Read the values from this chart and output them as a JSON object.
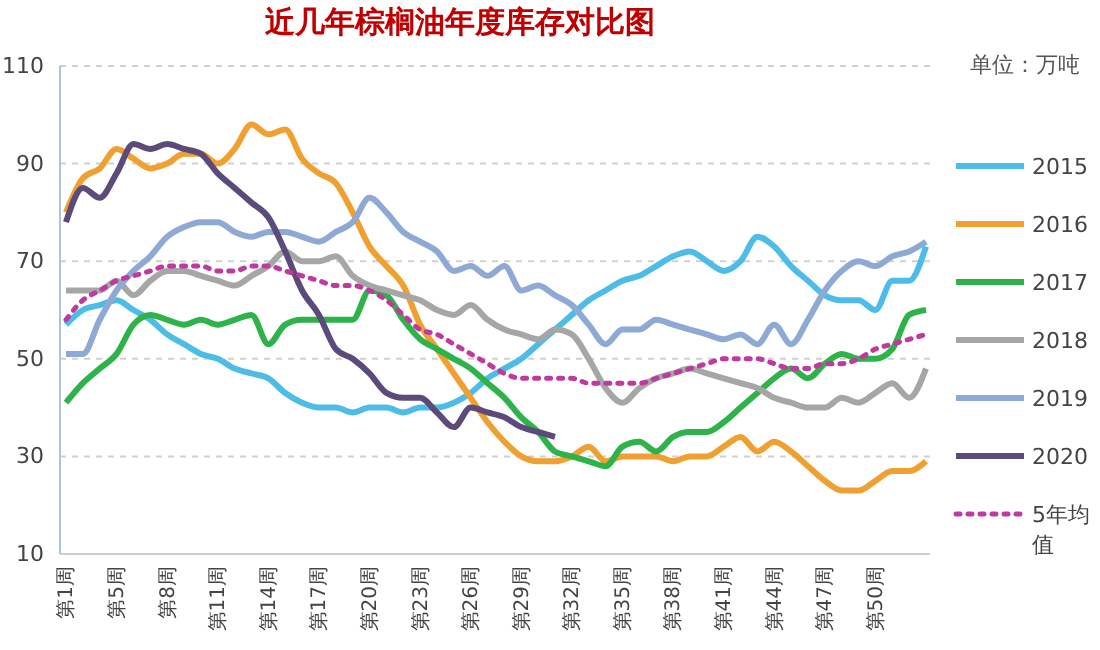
{
  "chart_data": {
    "type": "line",
    "title": "近几年棕榈油年度库存对比图",
    "annotations": [
      "单位：万吨"
    ],
    "categories": [
      "第1周",
      null,
      null,
      "第5周",
      null,
      null,
      "第8周",
      null,
      null,
      "第11周",
      null,
      null,
      "第14周",
      null,
      null,
      "第17周",
      null,
      null,
      "第20周",
      null,
      null,
      "第23周",
      null,
      null,
      "第26周",
      null,
      null,
      "第29周",
      null,
      null,
      "第32周",
      null,
      null,
      "第35周",
      null,
      null,
      "第38周",
      null,
      null,
      "第41周",
      null,
      null,
      "第44周",
      null,
      null,
      "第47周",
      null,
      null,
      "第50周",
      null,
      null,
      null
    ],
    "ylim": [
      10,
      110
    ],
    "yticks": [
      10,
      30,
      50,
      70,
      90,
      110
    ],
    "grid": "y",
    "legend": "right",
    "marker": "none",
    "series": [
      {
        "name": "2015",
        "color": "#4dbde8",
        "values": [
          57,
          60,
          61,
          62,
          60,
          58,
          55,
          53,
          51,
          50,
          48,
          47,
          46,
          43,
          41,
          40,
          40,
          39,
          40,
          40,
          39,
          40,
          40,
          41,
          43,
          46,
          48,
          50,
          53,
          56,
          59,
          62,
          64,
          66,
          67,
          69,
          71,
          72,
          70,
          68,
          70,
          75,
          73,
          69,
          66,
          63,
          62,
          62,
          60,
          66,
          66,
          73
        ]
      },
      {
        "name": "2016",
        "color": "#f0a030",
        "values": [
          80,
          87,
          89,
          93,
          91,
          89,
          90,
          92,
          92,
          90,
          93,
          98,
          96,
          97,
          91,
          88,
          86,
          80,
          73,
          69,
          65,
          57,
          52,
          47,
          42,
          37,
          33,
          30,
          29,
          29,
          30,
          32,
          29,
          30,
          30,
          30,
          29,
          30,
          30,
          32,
          34,
          31,
          33,
          31,
          28,
          25,
          23,
          23,
          25,
          27,
          27,
          29
        ]
      },
      {
        "name": "2017",
        "color": "#2db34a",
        "values": [
          41,
          45,
          48,
          51,
          57,
          59,
          58,
          57,
          58,
          57,
          58,
          59,
          53,
          57,
          58,
          58,
          58,
          58,
          64,
          63,
          58,
          54,
          52,
          50,
          48,
          45,
          42,
          38,
          35,
          31,
          30,
          29,
          28,
          32,
          33,
          31,
          34,
          35,
          35,
          37,
          40,
          43,
          46,
          48,
          46,
          49,
          51,
          50,
          50,
          52,
          59,
          60
        ]
      },
      {
        "name": "2018",
        "color": "#a6a6a6",
        "values": [
          64,
          64,
          64,
          66,
          63,
          66,
          68,
          68,
          67,
          66,
          65,
          67,
          69,
          72,
          70,
          70,
          71,
          67,
          65,
          64,
          63,
          62,
          60,
          59,
          61,
          58,
          56,
          55,
          54,
          56,
          55,
          50,
          44,
          41,
          44,
          46,
          47,
          48,
          47,
          46,
          45,
          44,
          42,
          41,
          40,
          40,
          42,
          41,
          43,
          45,
          42,
          48
        ]
      },
      {
        "name": "2019",
        "color": "#8eaad4",
        "values": [
          51,
          51,
          58,
          64,
          68,
          71,
          75,
          77,
          78,
          78,
          76,
          75,
          76,
          76,
          75,
          74,
          76,
          78,
          83,
          80,
          76,
          74,
          72,
          68,
          69,
          67,
          69,
          64,
          65,
          63,
          61,
          57,
          53,
          56,
          56,
          58,
          57,
          56,
          55,
          54,
          55,
          53,
          57,
          53,
          58,
          64,
          68,
          70,
          69,
          71,
          72,
          74
        ]
      },
      {
        "name": "2020",
        "color": "#5b4a7a",
        "values": [
          78,
          85,
          83,
          88,
          94,
          93,
          94,
          93,
          92,
          88,
          85,
          82,
          79,
          72,
          64,
          59,
          52,
          50,
          47,
          43,
          42,
          42,
          39,
          36,
          40,
          39,
          38,
          36,
          35,
          34,
          null,
          null,
          null,
          null,
          null,
          null,
          null,
          null,
          null,
          null,
          null,
          null,
          null,
          null,
          null,
          null,
          null,
          null,
          null,
          null,
          null,
          null
        ]
      },
      {
        "name": "5年均值",
        "color": "#c0399f",
        "line_style": "dotted",
        "values": [
          58,
          62,
          64,
          66,
          67,
          68,
          69,
          69,
          69,
          68,
          68,
          69,
          69,
          68,
          67,
          66,
          65,
          65,
          64,
          62,
          59,
          56,
          55,
          53,
          51,
          49,
          47,
          46,
          46,
          46,
          46,
          45,
          45,
          45,
          45,
          46,
          47,
          48,
          49,
          50,
          50,
          50,
          49,
          48,
          48,
          49,
          49,
          50,
          52,
          53,
          54,
          55
        ]
      }
    ]
  }
}
